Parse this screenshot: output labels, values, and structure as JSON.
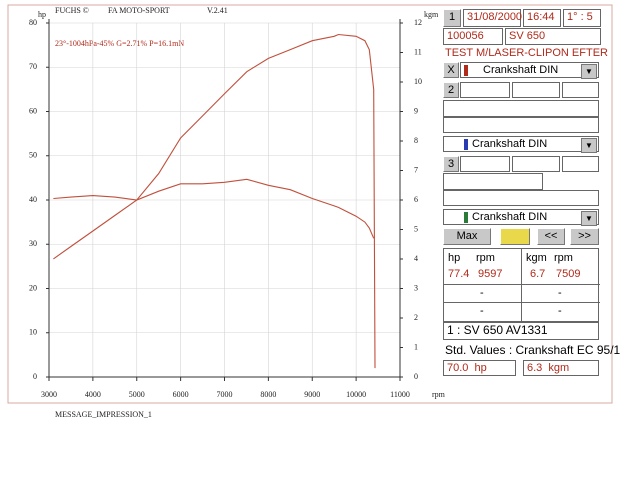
{
  "header": {
    "brand": "FUCHS ©",
    "company": "FA MOTO-SPORT",
    "version": "V.2.41"
  },
  "chart_data": {
    "type": "line",
    "annotation": "23°-1004hPa-45% G=2.71% P=16.1mN",
    "xlabel": "rpm",
    "x": [
      3100,
      3500,
      4000,
      4500,
      5000,
      5500,
      6000,
      6500,
      7000,
      7509,
      8000,
      8500,
      9000,
      9500,
      9597,
      10000,
      10200,
      10300,
      10400,
      10430
    ],
    "series": [
      {
        "name": "hp",
        "color": "#c0503c",
        "values": [
          26.7,
          29.5,
          33,
          36.5,
          40,
          46,
          54,
          59,
          64,
          69,
          72,
          74,
          76,
          77,
          77.4,
          77,
          76,
          74,
          65,
          2
        ]
      },
      {
        "name": "kgm",
        "color": "#c0503c",
        "axis": "y2",
        "values": [
          6.05,
          6.1,
          6.15,
          6.1,
          6.0,
          6.3,
          6.55,
          6.55,
          6.6,
          6.7,
          6.5,
          6.35,
          6.05,
          5.8,
          5.75,
          5.45,
          5.25,
          5.05,
          4.7,
          null
        ]
      }
    ],
    "xlim": [
      3000,
      11000
    ],
    "xticks": [
      3000,
      4000,
      5000,
      6000,
      7000,
      8000,
      9000,
      10000,
      11000
    ],
    "ylim": [
      0,
      80
    ],
    "yticks": [
      0,
      10,
      20,
      30,
      40,
      50,
      60,
      70,
      80
    ],
    "y2lim": [
      0,
      12
    ],
    "y2ticks": [
      0,
      1,
      2,
      3,
      4,
      5,
      6,
      7,
      8,
      9,
      10,
      11,
      12
    ],
    "grid": true
  },
  "panel": {
    "run_number": "1",
    "date": "31/08/2000",
    "time": "16:44",
    "ratio": "1° : 5",
    "id": "100056",
    "model": "SV 650",
    "test": "TEST M/LASER-CLIPON EFTER",
    "close": "X",
    "slots": [
      {
        "correction": "Crankshaft DIN"
      },
      {
        "number": "2",
        "correction": "Crankshaft DIN"
      },
      {
        "number": "3",
        "correction": "Crankshaft DIN"
      }
    ],
    "buttons": {
      "max": "Max",
      "prev": "<<",
      "next": ">>"
    },
    "results": {
      "left": {
        "headers": [
          "hp",
          "rpm"
        ],
        "values": [
          "77.4",
          "9597"
        ]
      },
      "right": {
        "headers": [
          "kgm",
          "rpm"
        ],
        "values": [
          "6.7",
          "7509"
        ]
      },
      "placeholders": [
        "-",
        "-",
        "-",
        "-"
      ]
    },
    "reference": {
      "name": "1 : SV 650 AV1331",
      "standard": "Std. Values : Crankshaft EC 95/1",
      "hp": "70.0  hp",
      "kgm": "6.3  kgm"
    }
  },
  "footer": "MESSAGE_IMPRESSION_1"
}
